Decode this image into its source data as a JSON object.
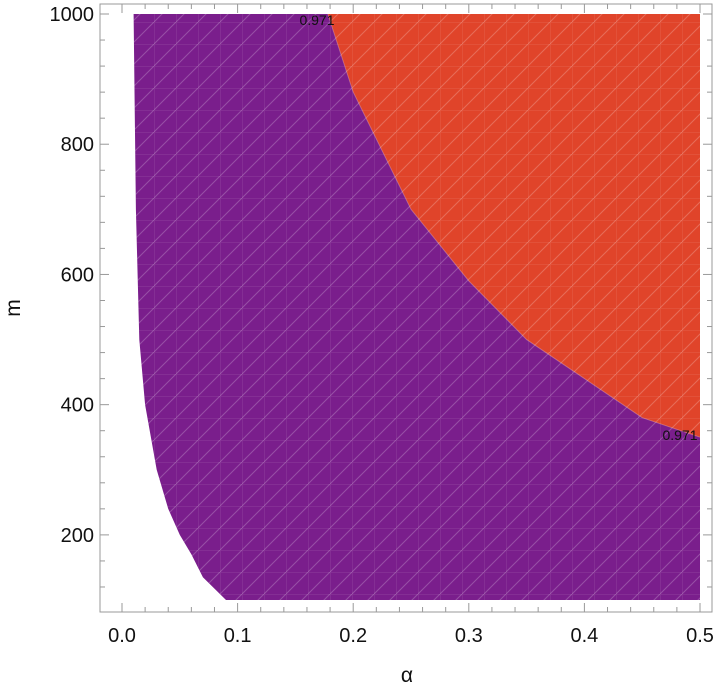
{
  "chart_data": {
    "type": "contour",
    "xlabel": "α",
    "ylabel": "m",
    "xlim": [
      0.0,
      0.5
    ],
    "ylim": [
      100,
      1000
    ],
    "x_ticks": [
      {
        "value": 0.0,
        "label": "0.0"
      },
      {
        "value": 0.1,
        "label": "0.1"
      },
      {
        "value": 0.2,
        "label": "0.2"
      },
      {
        "value": 0.3,
        "label": "0.3"
      },
      {
        "value": 0.4,
        "label": "0.4"
      },
      {
        "value": 0.5,
        "label": "0.5"
      }
    ],
    "y_ticks": [
      {
        "value": 200,
        "label": "200"
      },
      {
        "value": 400,
        "label": "400"
      },
      {
        "value": 600,
        "label": "600"
      },
      {
        "value": 800,
        "label": "800"
      },
      {
        "value": 1000,
        "label": "1000"
      }
    ],
    "contour_level": "0.971",
    "contour_labels": [
      {
        "text": "0.971",
        "at": [
          0.178,
          1000
        ]
      },
      {
        "text": "0.971",
        "at": [
          0.5,
          350
        ]
      }
    ],
    "regions": [
      {
        "name": "below-level",
        "color": "#7a1e8c",
        "left_boundary": [
          [
            0.01,
            1000
          ],
          [
            0.012,
            700
          ],
          [
            0.015,
            500
          ],
          [
            0.02,
            400
          ],
          [
            0.03,
            300
          ],
          [
            0.04,
            240
          ],
          [
            0.05,
            200
          ],
          [
            0.06,
            170
          ],
          [
            0.07,
            135
          ],
          [
            0.09,
            100
          ]
        ]
      },
      {
        "name": "above-level",
        "color": "#e0442a",
        "boundary": [
          [
            0.178,
            1000
          ],
          [
            0.2,
            880
          ],
          [
            0.25,
            700
          ],
          [
            0.3,
            590
          ],
          [
            0.35,
            500
          ],
          [
            0.4,
            440
          ],
          [
            0.45,
            380
          ],
          [
            0.5,
            350
          ]
        ]
      }
    ],
    "grid": false,
    "frame_color": "#999999",
    "background": "#ffffff"
  }
}
